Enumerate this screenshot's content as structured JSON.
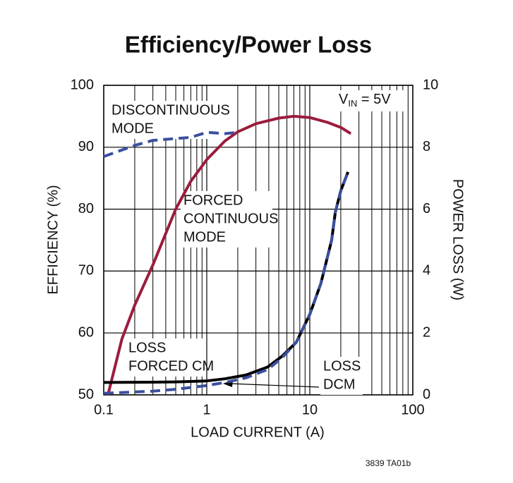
{
  "chart_data": {
    "type": "line",
    "title": "Efficiency/Power Loss",
    "x_label": "LOAD CURRENT (A)",
    "y_label": "EFFICIENCY (%)",
    "y2_label": "POWER LOSS (W)",
    "footnote": "3839 TA01b",
    "vin_label": {
      "main": "V",
      "sub": "IN",
      "suffix": " = 5V"
    },
    "annotations": [
      [
        "DISCONTINUOUS",
        "MODE"
      ],
      [
        "FORCED",
        "CONTINUOUS",
        "MODE"
      ],
      [
        "LOSS",
        "FORCED CM"
      ],
      [
        "LOSS",
        "DCM"
      ]
    ],
    "xscale": "log",
    "xlim": [
      0.1,
      100
    ],
    "xticks": [
      0.1,
      1,
      10,
      100
    ],
    "xminor": [
      0.2,
      0.3,
      0.4,
      0.5,
      0.6,
      0.7,
      0.8,
      0.9,
      2,
      3,
      4,
      5,
      6,
      7,
      8,
      9,
      20,
      30,
      40,
      50,
      60,
      70,
      80,
      90
    ],
    "ylim": [
      50,
      100
    ],
    "yticks": [
      50,
      60,
      70,
      80,
      90,
      100
    ],
    "y2lim": [
      0,
      10
    ],
    "y2ticks": [
      0,
      2,
      4,
      6,
      8,
      10
    ],
    "grid": true,
    "series": [
      {
        "color": "#3b4f9e",
        "dashed": true,
        "x": [
          0.1,
          0.2,
          0.3,
          0.5,
          0.7,
          1,
          1.5,
          2
        ],
        "values": [
          88.5,
          90.3,
          91.1,
          91.4,
          91.6,
          92.4,
          92.2,
          92.4
        ]
      },
      {
        "color": "#9b1c3d",
        "dashed": false,
        "x": [
          0.11,
          0.15,
          0.2,
          0.3,
          0.5,
          0.7,
          1,
          1.5,
          2,
          3,
          5,
          7,
          10,
          15,
          20,
          25
        ],
        "values": [
          50,
          59,
          64.5,
          71,
          80,
          84.5,
          88,
          91,
          92.5,
          93.8,
          94.7,
          95,
          94.8,
          94,
          93.2,
          92.2
        ]
      },
      {
        "color": "#000000",
        "dashed": false,
        "axis": "y2",
        "x": [
          0.1,
          0.3,
          0.5,
          1,
          1.5,
          2.4,
          3.9,
          5.4,
          7.4,
          10,
          12.8,
          16.3,
          17.7,
          20,
          23.5
        ],
        "values": [
          0.4,
          0.41,
          0.42,
          0.45,
          0.52,
          0.64,
          0.9,
          1.25,
          1.7,
          2.6,
          3.6,
          5.0,
          5.9,
          6.6,
          7.2
        ]
      },
      {
        "color": "#3b4f9e",
        "dashed": true,
        "axis": "y2",
        "x": [
          0.1,
          0.3,
          0.5,
          1,
          1.5,
          2.4,
          3.9,
          5.4,
          7.4,
          10,
          12.8,
          16.3,
          17.7,
          20,
          23.5
        ],
        "values": [
          0.05,
          0.12,
          0.18,
          0.3,
          0.4,
          0.55,
          0.82,
          1.2,
          1.7,
          2.6,
          3.6,
          5.0,
          5.9,
          6.6,
          7.2
        ]
      }
    ]
  }
}
